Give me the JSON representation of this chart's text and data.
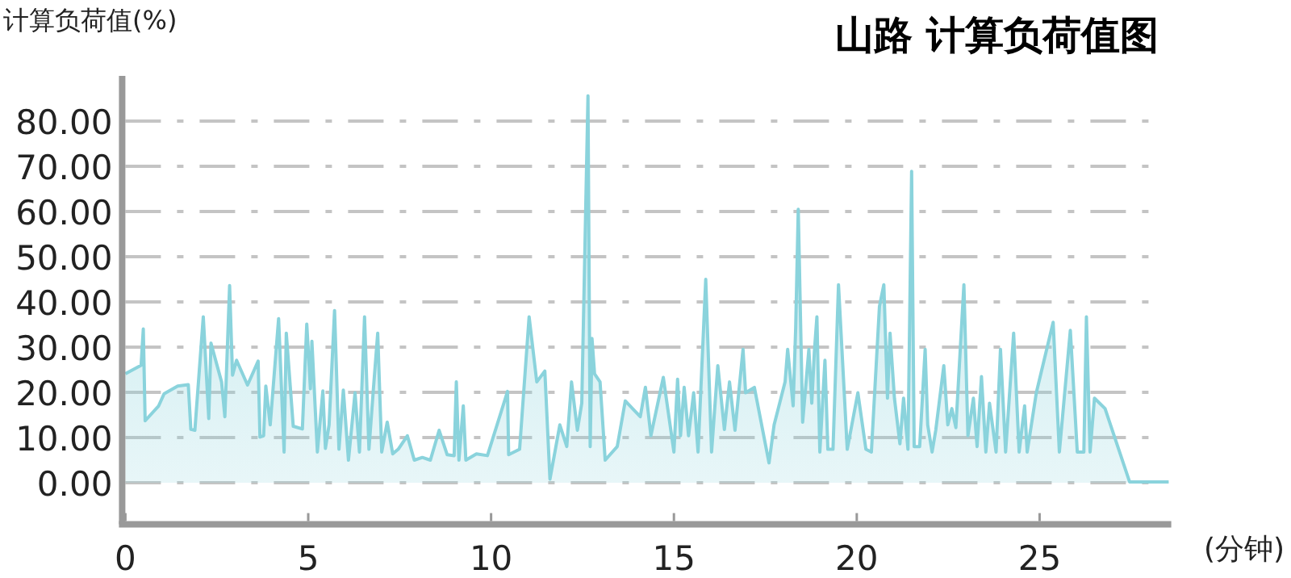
{
  "chart_data": {
    "type": "area",
    "title": "山路 计算负荷值图",
    "ylabel": "计算负荷值(%)",
    "xlabel": "(分钟)",
    "xlim": [
      0,
      28.6
    ],
    "xticks": [
      0,
      5,
      10,
      15,
      20,
      25
    ],
    "ylim": [
      -8.5,
      90
    ],
    "yticks": [
      {
        "value": 0,
        "label": "0.00"
      },
      {
        "value": 10,
        "label": "10.00"
      },
      {
        "value": 20,
        "label": "20.00"
      },
      {
        "value": 30,
        "label": "30.00"
      },
      {
        "value": 40,
        "label": "40.00"
      },
      {
        "value": 50,
        "label": "50.00"
      },
      {
        "value": 60,
        "label": "60.00"
      },
      {
        "value": 70,
        "label": "70.00"
      },
      {
        "value": 80,
        "label": "80.00"
      }
    ],
    "grid": "y",
    "series": [
      {
        "color": "#8ad3dc",
        "x": [
          0,
          0.43,
          0.49,
          0.54,
          0.91,
          1.06,
          1.43,
          1.72,
          1.79,
          1.9,
          2.13,
          2.28,
          2.34,
          2.63,
          2.72,
          2.85,
          2.93,
          3.04,
          3.34,
          3.63,
          3.68,
          3.78,
          3.84,
          3.96,
          4.19,
          4.34,
          4.4,
          4.59,
          4.84,
          4.96,
          5.06,
          5.1,
          5.25,
          5.4,
          5.47,
          5.57,
          5.72,
          5.84,
          5.96,
          6.1,
          6.28,
          6.4,
          6.54,
          6.66,
          6.78,
          6.9,
          7.01,
          7.16,
          7.31,
          7.46,
          7.71,
          7.9,
          8.12,
          8.34,
          8.58,
          8.8,
          8.99,
          9.05,
          9.12,
          9.24,
          9.31,
          9.6,
          9.9,
          10.45,
          10.48,
          10.78,
          11.04,
          11.25,
          11.47,
          11.61,
          11.88,
          12.07,
          12.2,
          12.36,
          12.48,
          12.65,
          12.71,
          12.76,
          12.83,
          12.98,
          13.12,
          13.45,
          13.67,
          14.08,
          14.22,
          14.37,
          14.71,
          15.0,
          15.1,
          15.18,
          15.28,
          15.4,
          15.54,
          15.66,
          15.87,
          16.03,
          16.2,
          16.38,
          16.52,
          16.67,
          16.89,
          16.96,
          17.2,
          17.6,
          17.74,
          18.04,
          18.11,
          18.26,
          18.33,
          18.4,
          18.52,
          18.69,
          18.77,
          18.84,
          18.91,
          18.99,
          19.13,
          19.21,
          19.35,
          19.5,
          19.74,
          20.03,
          20.25,
          20.4,
          20.62,
          20.74,
          20.84,
          20.91,
          21.03,
          21.18,
          21.28,
          21.4,
          21.5,
          21.57,
          21.72,
          21.87,
          21.94,
          22.06,
          22.16,
          22.38,
          22.49,
          22.6,
          22.71,
          22.93,
          23.04,
          23.19,
          23.29,
          23.41,
          23.53,
          23.63,
          23.81,
          23.93,
          24.07,
          24.29,
          24.44,
          24.59,
          24.66,
          24.91,
          25.37,
          25.54,
          25.84,
          26.03,
          26.21,
          26.28,
          26.38,
          26.5,
          26.79,
          27.46,
          27.97,
          28.53
        ],
        "values": [
          24.1,
          26,
          34,
          13.7,
          17,
          19.7,
          21.4,
          21.7,
          11.8,
          11.6,
          36.7,
          14.2,
          30.9,
          22.3,
          14.6,
          43.6,
          23.8,
          27.1,
          21.6,
          26.9,
          10.1,
          10.4,
          21.4,
          12.8,
          36.3,
          6.8,
          33.1,
          12.5,
          11.9,
          35.1,
          20.8,
          31.3,
          6.8,
          20.3,
          7.6,
          12.8,
          38.1,
          7.4,
          20.5,
          5.0,
          19.9,
          6.8,
          36.7,
          7.4,
          20.5,
          33.1,
          6.8,
          13.4,
          6.4,
          7.4,
          10.4,
          5.0,
          5.6,
          5.0,
          11.6,
          6.2,
          6.0,
          22.3,
          5.0,
          17,
          5.0,
          6.4,
          6.0,
          20.2,
          6.2,
          7.4,
          36.7,
          22.3,
          24.7,
          0.8,
          12.8,
          8.0,
          22.3,
          11.6,
          17.6,
          85.6,
          8.0,
          31.9,
          24.1,
          22.3,
          5.0,
          8.0,
          18.1,
          14.6,
          21.1,
          10.4,
          23.3,
          6.8,
          22.9,
          10.4,
          21.1,
          10.4,
          19.9,
          6.8,
          45,
          6.8,
          25.9,
          11.8,
          22.3,
          11.6,
          29.5,
          19.9,
          21.1,
          4.4,
          12.8,
          22.3,
          29.5,
          17,
          34.3,
          60.5,
          13.4,
          29.5,
          17.6,
          28.9,
          36.7,
          6.8,
          27.1,
          7.4,
          7.4,
          43.8,
          7.4,
          19.9,
          7.4,
          6.8,
          39,
          43.8,
          18.7,
          33.1,
          18.7,
          8.6,
          18.7,
          7.4,
          68.9,
          8.0,
          8.0,
          29.5,
          12.8,
          6.8,
          11.6,
          25.9,
          12.8,
          16.4,
          12.2,
          43.8,
          10.4,
          18.7,
          8.0,
          23.5,
          6.8,
          17.6,
          6.8,
          29.5,
          6.8,
          33.1,
          6.8,
          17,
          6.8,
          19.9,
          35.5,
          6.8,
          33.7,
          6.8,
          6.8,
          36.7,
          6.8,
          18.7,
          16.4,
          0.2,
          0.2,
          0.2
        ]
      }
    ]
  }
}
